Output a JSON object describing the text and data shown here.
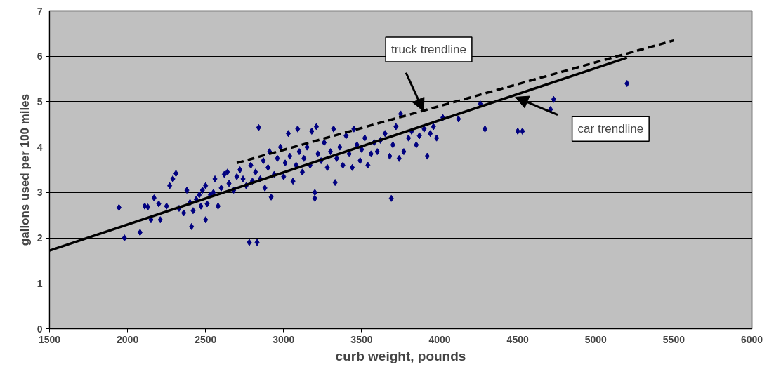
{
  "chart_data": {
    "type": "scatter",
    "xlabel": "curb weight, pounds",
    "ylabel": "gallons used per 100 miles",
    "xlim": [
      1500,
      6000
    ],
    "xticks": [
      1500,
      2000,
      2500,
      3000,
      3500,
      4000,
      4500,
      5000,
      5500,
      6000
    ],
    "ylim": [
      0,
      7
    ],
    "yticks": [
      0,
      1,
      2,
      3,
      4,
      5,
      6,
      7
    ],
    "grid": "y",
    "series": [
      {
        "marker": "diamond",
        "color": "#000080",
        "x": [
          1945,
          1980,
          2080,
          2110,
          2130,
          2150,
          2170,
          2200,
          2210,
          2250,
          2270,
          2290,
          2310,
          2330,
          2360,
          2380,
          2400,
          2410,
          2420,
          2440,
          2460,
          2470,
          2480,
          2500,
          2500,
          2510,
          2530,
          2550,
          2560,
          2580,
          2600,
          2620,
          2640,
          2650,
          2680,
          2700,
          2720,
          2740,
          2760,
          2780,
          2790,
          2800,
          2820,
          2830,
          2840,
          2850,
          2870,
          2880,
          2900,
          2910,
          2920,
          2940,
          2960,
          2980,
          3000,
          3010,
          3030,
          3040,
          3060,
          3080,
          3090,
          3100,
          3120,
          3130,
          3150,
          3170,
          3180,
          3200,
          3200,
          3210,
          3220,
          3240,
          3260,
          3280,
          3300,
          3320,
          3330,
          3340,
          3360,
          3380,
          3400,
          3420,
          3440,
          3450,
          3470,
          3490,
          3500,
          3520,
          3540,
          3560,
          3580,
          3600,
          3620,
          3650,
          3680,
          3690,
          3700,
          3720,
          3740,
          3750,
          3770,
          3800,
          3820,
          3850,
          3870,
          3900,
          3920,
          3940,
          3960,
          3980,
          4020,
          4120,
          4260,
          4290,
          4500,
          4530,
          4710,
          4730,
          5200
        ],
        "values": [
          2.67,
          2.0,
          2.12,
          2.7,
          2.68,
          2.4,
          2.88,
          2.75,
          2.4,
          2.7,
          3.15,
          3.3,
          3.42,
          2.65,
          2.55,
          3.05,
          2.78,
          2.25,
          2.6,
          2.85,
          2.95,
          2.7,
          3.05,
          2.4,
          3.15,
          2.75,
          2.95,
          3.0,
          3.3,
          2.7,
          3.1,
          3.4,
          3.45,
          3.2,
          3.05,
          3.35,
          3.5,
          3.3,
          3.15,
          1.9,
          3.6,
          3.25,
          3.45,
          1.9,
          4.43,
          3.3,
          3.7,
          3.1,
          3.55,
          3.9,
          2.9,
          3.4,
          3.75,
          4.0,
          3.35,
          3.65,
          4.3,
          3.8,
          3.25,
          3.6,
          4.4,
          3.9,
          3.45,
          3.75,
          4.0,
          3.6,
          4.35,
          3.0,
          2.87,
          4.45,
          3.85,
          3.7,
          4.1,
          3.55,
          3.9,
          4.4,
          3.22,
          3.75,
          4.0,
          3.6,
          4.25,
          3.85,
          3.55,
          4.4,
          4.05,
          3.7,
          3.95,
          4.2,
          3.6,
          3.85,
          4.1,
          3.9,
          4.15,
          4.3,
          3.8,
          2.87,
          4.05,
          4.45,
          3.75,
          4.73,
          3.9,
          4.2,
          4.35,
          4.05,
          4.25,
          4.4,
          3.8,
          4.3,
          4.45,
          4.2,
          4.65,
          4.62,
          4.95,
          4.4,
          4.35,
          4.35,
          4.83,
          5.05,
          5.4
        ]
      },
      {
        "type": "line",
        "line_style": "solid",
        "color": "#000000",
        "x": [
          1500,
          5200
        ],
        "values": [
          1.72,
          5.97
        ]
      },
      {
        "type": "line",
        "line_style": "dashed",
        "color": "#000000",
        "x": [
          2700,
          5500
        ],
        "values": [
          3.65,
          6.35
        ]
      }
    ],
    "annotations": [
      "truck trendline",
      "car trendline"
    ]
  }
}
